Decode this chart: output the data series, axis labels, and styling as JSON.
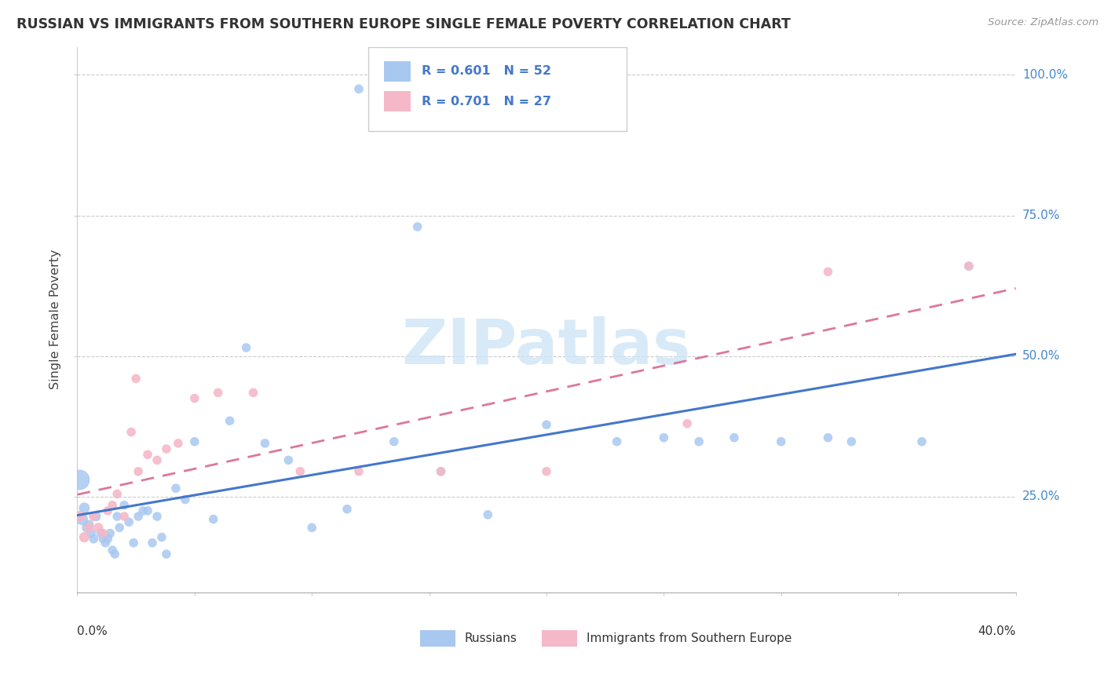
{
  "title": "RUSSIAN VS IMMIGRANTS FROM SOUTHERN EUROPE SINGLE FEMALE POVERTY CORRELATION CHART",
  "source": "Source: ZipAtlas.com",
  "ylabel": "Single Female Poverty",
  "russian_color": "#a8c8f0",
  "immigrant_color": "#f4b8c8",
  "trendline_russian_color": "#4477cc",
  "trendline_immigrant_color": "#dd7799",
  "background_color": "#ffffff",
  "grid_color": "#cccccc",
  "xlim": [
    0.0,
    0.4
  ],
  "ylim": [
    0.08,
    1.05
  ],
  "yticks": [
    0.25,
    0.5,
    0.75,
    1.0
  ],
  "ytick_labels": [
    "25.0%",
    "50.0%",
    "75.0%",
    "100.0%"
  ],
  "xtick_labels": [
    "0.0%",
    "40.0%"
  ],
  "legend_r1": "R = 0.601   N = 52",
  "legend_r2": "R = 0.701   N = 27",
  "legend_label1": "Russians",
  "legend_label2": "Immigrants from Southern Europe",
  "watermark": "ZIPatlas",
  "russians_x": [
    0.001,
    0.002,
    0.003,
    0.004,
    0.005,
    0.006,
    0.007,
    0.008,
    0.01,
    0.011,
    0.012,
    0.013,
    0.014,
    0.015,
    0.016,
    0.017,
    0.018,
    0.02,
    0.022,
    0.024,
    0.026,
    0.028,
    0.03,
    0.032,
    0.034,
    0.036,
    0.038,
    0.042,
    0.046,
    0.05,
    0.058,
    0.065,
    0.072,
    0.08,
    0.09,
    0.1,
    0.115,
    0.135,
    0.155,
    0.175,
    0.2,
    0.23,
    0.265,
    0.3,
    0.33,
    0.36,
    0.38,
    0.12,
    0.145,
    0.25,
    0.28,
    0.32
  ],
  "russians_y": [
    0.28,
    0.21,
    0.23,
    0.195,
    0.2,
    0.185,
    0.175,
    0.215,
    0.185,
    0.175,
    0.168,
    0.175,
    0.185,
    0.155,
    0.148,
    0.215,
    0.195,
    0.235,
    0.205,
    0.168,
    0.215,
    0.225,
    0.225,
    0.168,
    0.215,
    0.178,
    0.148,
    0.265,
    0.245,
    0.348,
    0.21,
    0.385,
    0.515,
    0.345,
    0.315,
    0.195,
    0.228,
    0.348,
    0.295,
    0.218,
    0.378,
    0.348,
    0.348,
    0.348,
    0.348,
    0.348,
    0.66,
    0.975,
    0.73,
    0.355,
    0.355,
    0.355
  ],
  "russians_size": [
    350,
    120,
    100,
    80,
    80,
    70,
    70,
    80,
    70,
    70,
    70,
    70,
    70,
    70,
    70,
    70,
    70,
    70,
    70,
    70,
    70,
    70,
    70,
    70,
    70,
    70,
    70,
    70,
    70,
    70,
    70,
    70,
    70,
    70,
    70,
    70,
    70,
    70,
    70,
    70,
    70,
    70,
    70,
    70,
    70,
    70,
    70,
    70,
    70,
    70,
    70,
    70
  ],
  "immigrants_x": [
    0.001,
    0.003,
    0.005,
    0.007,
    0.009,
    0.011,
    0.013,
    0.015,
    0.017,
    0.02,
    0.023,
    0.026,
    0.03,
    0.034,
    0.038,
    0.043,
    0.05,
    0.06,
    0.075,
    0.095,
    0.12,
    0.155,
    0.2,
    0.26,
    0.32,
    0.38,
    0.025
  ],
  "immigrants_y": [
    0.215,
    0.178,
    0.195,
    0.215,
    0.195,
    0.185,
    0.225,
    0.235,
    0.255,
    0.215,
    0.365,
    0.295,
    0.325,
    0.315,
    0.335,
    0.345,
    0.425,
    0.435,
    0.435,
    0.295,
    0.295,
    0.295,
    0.295,
    0.38,
    0.65,
    0.66,
    0.46
  ],
  "immigrants_size": [
    100,
    90,
    80,
    80,
    80,
    70,
    70,
    70,
    70,
    70,
    70,
    70,
    70,
    70,
    70,
    70,
    70,
    70,
    70,
    70,
    70,
    70,
    70,
    70,
    70,
    70,
    70
  ]
}
